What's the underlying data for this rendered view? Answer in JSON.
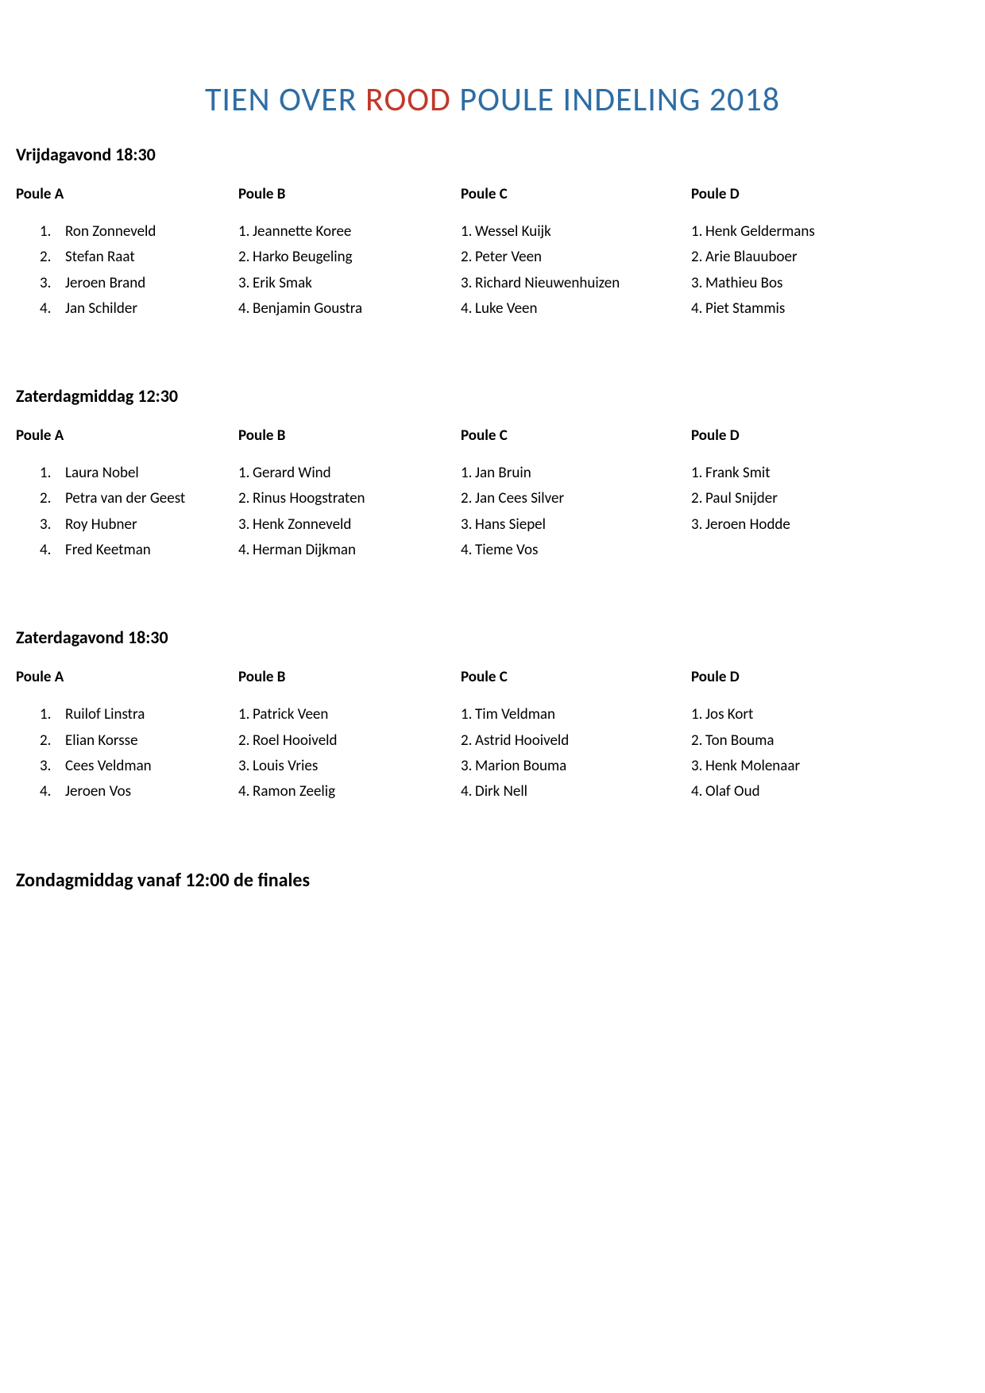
{
  "title": {
    "part1": "TIEN OVER ",
    "highlight": "ROOD",
    "part2": " POULE INDELING 2018",
    "color_main": "#2e6da4",
    "color_highlight": "#c0392b"
  },
  "sessions": [
    {
      "heading": "Vrijdagavond 18:30",
      "poules": [
        {
          "title": "Poule A",
          "indented": true,
          "players": [
            "Ron Zonneveld",
            "Stefan Raat",
            "Jeroen Brand",
            "Jan Schilder"
          ]
        },
        {
          "title": "Poule B",
          "indented": false,
          "players": [
            "Jeannette Koree",
            "Harko Beugeling",
            "Erik Smak",
            "Benjamin Goustra"
          ]
        },
        {
          "title": "Poule C",
          "indented": false,
          "players": [
            "Wessel Kuijk",
            "Peter Veen",
            "Richard Nieuwenhuizen",
            "Luke Veen"
          ]
        },
        {
          "title": "Poule D",
          "indented": false,
          "players": [
            "Henk Geldermans",
            "Arie Blauuboer",
            "Mathieu Bos",
            "Piet Stammis"
          ]
        }
      ]
    },
    {
      "heading": "Zaterdagmiddag 12:30",
      "poules": [
        {
          "title": "Poule A",
          "indented": true,
          "players": [
            "Laura Nobel",
            "Petra van der Geest",
            "Roy Hubner",
            "Fred Keetman"
          ]
        },
        {
          "title": "Poule B",
          "indented": false,
          "players": [
            "Gerard Wind",
            "Rinus Hoogstraten",
            "Henk Zonneveld",
            "Herman Dijkman"
          ]
        },
        {
          "title": "Poule C",
          "indented": false,
          "players": [
            "Jan Bruin",
            "Jan Cees Silver",
            "Hans Siepel",
            "Tieme Vos"
          ],
          "number_formats": [
            "1. ",
            "2. ",
            "3. ",
            "4."
          ]
        },
        {
          "title": "Poule D",
          "indented": false,
          "players": [
            "Frank Smit",
            "Paul Snijder",
            "Jeroen Hodde"
          ]
        }
      ]
    },
    {
      "heading": "Zaterdagavond 18:30",
      "poules": [
        {
          "title": "Poule A",
          "indented": true,
          "players": [
            "Ruilof Linstra",
            "Elian Korsse",
            "Cees Veldman",
            "Jeroen Vos"
          ]
        },
        {
          "title": "Poule B",
          "indented": false,
          "players": [
            "Patrick Veen",
            "Roel Hooiveld",
            "Louis Vries",
            "Ramon Zeelig"
          ]
        },
        {
          "title": "Poule C",
          "indented": false,
          "players": [
            "Tim Veldman",
            "Astrid Hooiveld",
            "Marion Bouma",
            "Dirk Nell"
          ]
        },
        {
          "title": "Poule D",
          "indented": false,
          "players": [
            "Jos Kort",
            "Ton Bouma",
            "Henk Molenaar",
            "Olaf Oud"
          ]
        }
      ]
    }
  ],
  "finals_heading": "Zondagmiddag vanaf 12:00 de finales"
}
